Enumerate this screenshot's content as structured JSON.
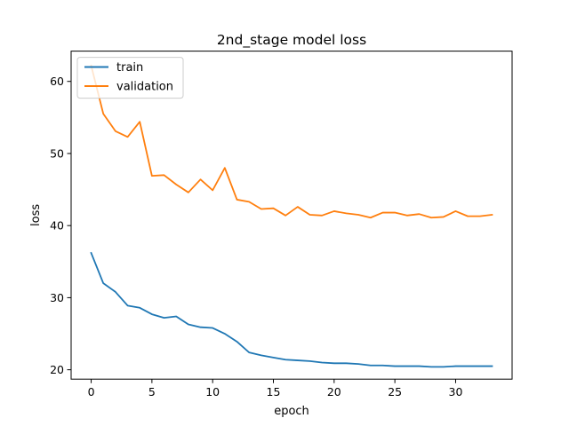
{
  "chart_data": {
    "type": "line",
    "title": "2nd_stage model loss",
    "xlabel": "epoch",
    "ylabel": "loss",
    "x": [
      0,
      1,
      2,
      3,
      4,
      5,
      6,
      7,
      8,
      9,
      10,
      11,
      12,
      13,
      14,
      15,
      16,
      17,
      18,
      19,
      20,
      21,
      22,
      23,
      24,
      25,
      26,
      27,
      28,
      29,
      30,
      31,
      32,
      33
    ],
    "xlim": [
      -1.65,
      34.65
    ],
    "ylim": [
      18.7,
      64.2
    ],
    "xticks": [
      0,
      5,
      10,
      15,
      20,
      25,
      30
    ],
    "yticks": [
      20,
      30,
      40,
      50,
      60
    ],
    "grid": false,
    "legend_position": "upper left",
    "series": [
      {
        "name": "train",
        "color": "#1f77b4",
        "values": [
          36.2,
          32.0,
          30.8,
          28.9,
          28.6,
          27.7,
          27.2,
          27.4,
          26.3,
          25.9,
          25.8,
          25.0,
          23.9,
          22.4,
          22.0,
          21.7,
          21.4,
          21.3,
          21.2,
          21.0,
          20.9,
          20.9,
          20.8,
          20.6,
          20.6,
          20.5,
          20.5,
          20.5,
          20.4,
          20.4,
          20.5,
          20.5,
          20.5,
          20.5
        ]
      },
      {
        "name": "validation",
        "color": "#ff7f0e",
        "values": [
          62.2,
          55.5,
          53.1,
          52.3,
          54.4,
          46.9,
          47.0,
          45.7,
          44.6,
          46.4,
          44.9,
          48.0,
          43.6,
          43.3,
          42.3,
          42.4,
          41.4,
          42.6,
          41.5,
          41.4,
          42.0,
          41.7,
          41.5,
          41.1,
          41.8,
          41.8,
          41.4,
          41.6,
          41.1,
          41.2,
          42.0,
          41.3,
          41.3,
          41.5
        ]
      }
    ]
  }
}
